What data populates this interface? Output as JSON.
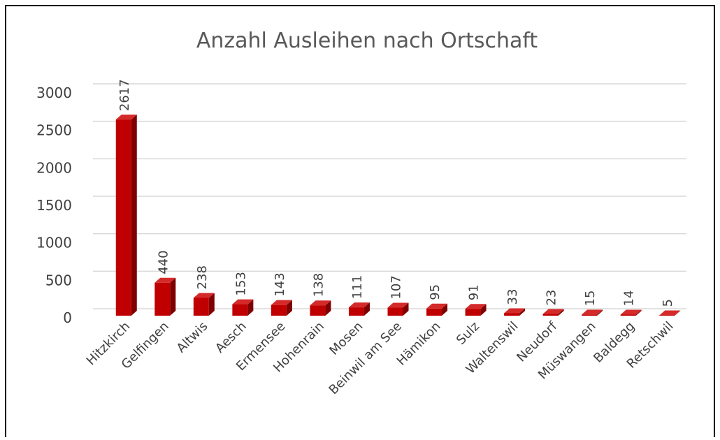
{
  "chart_data": {
    "type": "bar3d",
    "title": "Anzahl Ausleihen nach Ortschaft",
    "categories": [
      "Hitzkirch",
      "Gelfingen",
      "Altwis",
      "Aesch",
      "Ermensee",
      "Hohenrain",
      "Mosen",
      "Beinwil am See",
      "Hämikon",
      "Sulz",
      "Waltenswil",
      "Neudorf",
      "Müswangen",
      "Baldegg",
      "Retschwil"
    ],
    "values": [
      2617,
      440,
      238,
      153,
      143,
      138,
      111,
      107,
      95,
      91,
      33,
      23,
      15,
      14,
      5
    ],
    "color": "#c00000",
    "ylim": [
      0,
      3000
    ],
    "yticks": [
      0,
      500,
      1000,
      1500,
      2000,
      2500,
      3000
    ],
    "grid": true
  }
}
